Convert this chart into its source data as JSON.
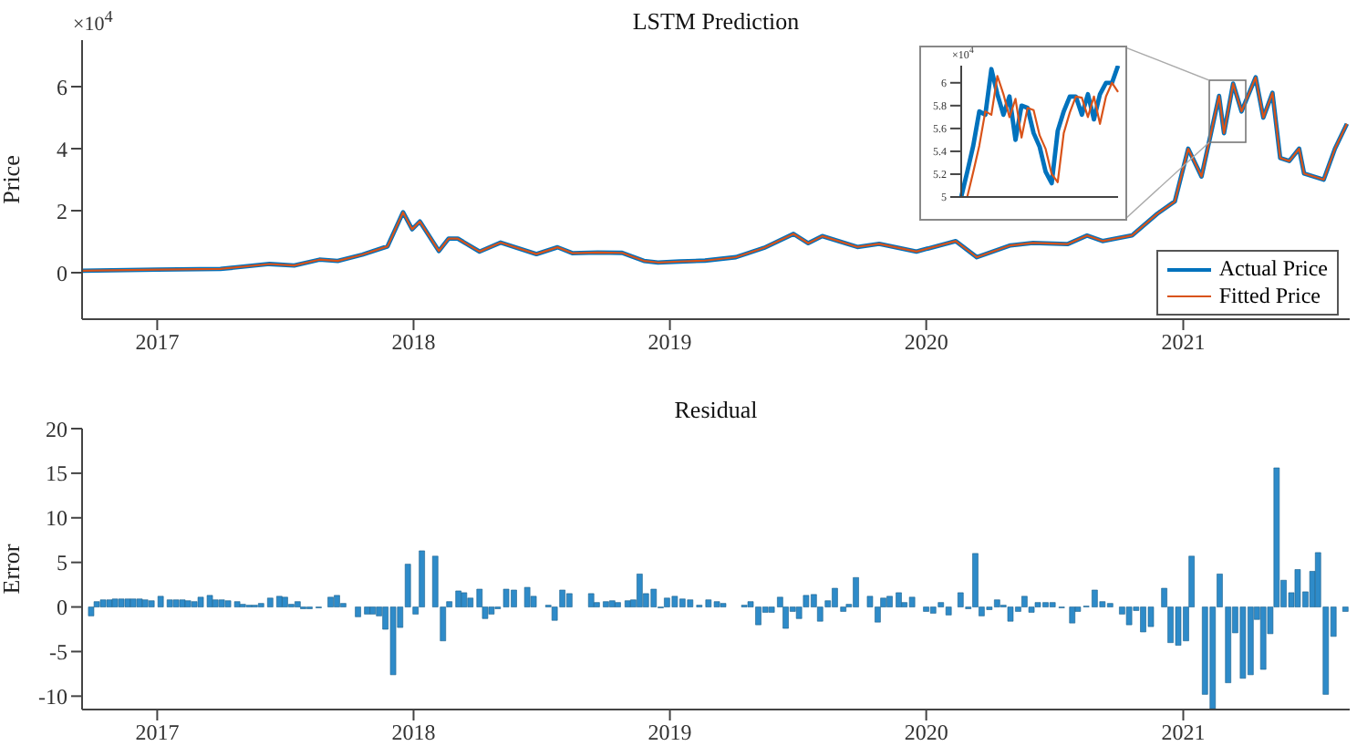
{
  "chart_data": [
    {
      "type": "line",
      "title": "LSTM Prediction",
      "ylabel": "Price",
      "annotations": [
        "×10$^{4}$"
      ],
      "xlim": [
        "2016-09-16",
        "2021-08-26"
      ],
      "xticks": [
        "2017",
        "2018",
        "2019",
        "2020",
        "2021"
      ],
      "ylim": [
        -1.5,
        7.5
      ],
      "yticks": [
        0,
        2,
        4,
        6
      ],
      "legend": "bottom right",
      "x": [
        "2016-09-16",
        "2017-01-01",
        "2017-04-01",
        "2017-06-10",
        "2017-07-15",
        "2017-08-20",
        "2017-09-15",
        "2017-10-20",
        "2017-11-25",
        "2017-12-17",
        "2017-12-30",
        "2018-01-10",
        "2018-02-06",
        "2018-02-20",
        "2018-03-05",
        "2018-04-05",
        "2018-05-05",
        "2018-06-25",
        "2018-07-25",
        "2018-08-15",
        "2018-09-20",
        "2018-10-25",
        "2018-11-25",
        "2018-12-15",
        "2019-01-15",
        "2019-02-20",
        "2019-04-05",
        "2019-05-15",
        "2019-06-26",
        "2019-07-17",
        "2019-08-06",
        "2019-09-25",
        "2019-10-26",
        "2019-12-18",
        "2020-02-12",
        "2020-03-13",
        "2020-04-30",
        "2020-06-01",
        "2020-07-20",
        "2020-08-17",
        "2020-09-08",
        "2020-10-20",
        "2020-11-25",
        "2020-12-20",
        "2021-01-08",
        "2021-01-27",
        "2021-02-21",
        "2021-02-28",
        "2021-03-13",
        "2021-03-25",
        "2021-04-14",
        "2021-04-25",
        "2021-05-08",
        "2021-05-19",
        "2021-06-01",
        "2021-06-15",
        "2021-06-22",
        "2021-07-20",
        "2021-08-05",
        "2021-08-22"
      ],
      "series": [
        {
          "name": "Actual Price",
          "color": "#0072bd",
          "values": [
            0.06,
            0.1,
            0.12,
            0.28,
            0.23,
            0.42,
            0.38,
            0.58,
            0.85,
            1.95,
            1.4,
            1.65,
            0.7,
            1.1,
            1.1,
            0.68,
            0.97,
            0.6,
            0.82,
            0.63,
            0.65,
            0.64,
            0.38,
            0.33,
            0.36,
            0.39,
            0.5,
            0.8,
            1.25,
            0.95,
            1.18,
            0.83,
            0.93,
            0.68,
            1.02,
            0.5,
            0.88,
            0.96,
            0.92,
            1.2,
            1.02,
            1.2,
            1.9,
            2.3,
            4,
            3.1,
            5.7,
            4.5,
            6.1,
            5.2,
            6.3,
            5,
            5.8,
            3.7,
            3.6,
            4,
            3.2,
            3,
            4,
            4.8
          ]
        },
        {
          "name": "Fitted Price",
          "color": "#d95319",
          "values": [
            0.06,
            0.1,
            0.12,
            0.28,
            0.23,
            0.42,
            0.38,
            0.58,
            0.85,
            1.95,
            1.4,
            1.65,
            0.7,
            1.1,
            1.1,
            0.68,
            0.97,
            0.6,
            0.82,
            0.63,
            0.65,
            0.64,
            0.38,
            0.33,
            0.36,
            0.39,
            0.5,
            0.8,
            1.25,
            0.95,
            1.18,
            0.83,
            0.93,
            0.68,
            1.02,
            0.5,
            0.88,
            0.96,
            0.92,
            1.2,
            1.02,
            1.2,
            1.9,
            2.3,
            4,
            3.1,
            5.7,
            4.5,
            6.1,
            5.2,
            6.3,
            5,
            5.8,
            3.7,
            3.6,
            4,
            3.2,
            3,
            4,
            4.8
          ]
        }
      ]
    },
    {
      "type": "line",
      "annotations": [
        "×10$^{4}$"
      ],
      "categories": [
        null,
        null,
        null,
        null,
        null,
        null,
        null,
        null,
        null,
        null,
        null,
        null,
        null,
        null,
        null,
        null,
        null,
        null,
        null,
        null,
        null,
        null,
        null,
        null,
        null,
        null,
        null
      ],
      "ylim": [
        5,
        6.15
      ],
      "yticks": [
        5,
        5.2,
        5.4,
        5.6,
        5.8,
        6
      ],
      "series": [
        {
          "color": "#0072bd",
          "values": [
            5.0,
            5.22,
            5.45,
            5.75,
            5.72,
            6.12,
            5.9,
            5.72,
            5.88,
            5.5,
            5.8,
            5.78,
            5.56,
            5.44,
            5.22,
            5.12,
            5.58,
            5.75,
            5.88,
            5.88,
            5.72,
            5.9,
            5.68,
            5.9,
            6.0,
            6.0,
            6.15
          ]
        },
        {
          "color": "#d95319",
          "values": [
            5.0,
            5.0,
            5.22,
            5.45,
            5.75,
            5.72,
            6.06,
            5.9,
            5.7,
            5.86,
            5.52,
            5.78,
            5.76,
            5.54,
            5.42,
            5.2,
            5.13,
            5.56,
            5.74,
            5.88,
            5.87,
            5.7,
            5.88,
            5.64,
            5.88,
            6.0,
            5.92
          ]
        }
      ]
    },
    {
      "type": "bar",
      "title": "Residual",
      "ylabel": "Error",
      "xlim": [
        "2016-09-16",
        "2021-08-26"
      ],
      "xticks": [
        "2017",
        "2018",
        "2019",
        "2020",
        "2021"
      ],
      "ylim": [
        -11.5,
        20
      ],
      "yticks": [
        -10,
        -5,
        0,
        5,
        10,
        15,
        20
      ],
      "color": "#2e8bc9",
      "x": [
        "2016-09-29",
        "2016-10-07",
        "2016-10-16",
        "2016-10-25",
        "2016-11-02",
        "2016-11-11",
        "2016-11-20",
        "2016-11-28",
        "2016-12-07",
        "2016-12-15",
        "2016-12-24",
        "2017-01-06",
        "2017-01-19",
        "2017-01-28",
        "2017-02-06",
        "2017-02-14",
        "2017-02-23",
        "2017-03-04",
        "2017-03-17",
        "2017-03-25",
        "2017-04-03",
        "2017-04-12",
        "2017-04-25",
        "2017-05-03",
        "2017-05-12",
        "2017-05-20",
        "2017-05-29",
        "2017-06-11",
        "2017-06-24",
        "2017-07-02",
        "2017-07-11",
        "2017-07-20",
        "2017-07-28",
        "2017-08-06",
        "2017-08-19",
        "2017-09-05",
        "2017-09-14",
        "2017-09-23",
        "2017-10-14",
        "2017-10-27",
        "2017-11-04",
        "2017-11-13",
        "2017-11-22",
        "2017-12-03",
        "2017-12-13",
        "2017-12-24",
        "2018-01-04",
        "2018-01-13",
        "2018-02-01",
        "2018-02-12",
        "2018-02-21",
        "2018-03-06",
        "2018-03-14",
        "2018-03-23",
        "2018-04-05",
        "2018-04-13",
        "2018-04-22",
        "2018-05-01",
        "2018-05-13",
        "2018-05-24",
        "2018-06-12",
        "2018-06-21",
        "2018-07-12",
        "2018-07-21",
        "2018-08-01",
        "2018-08-11",
        "2018-09-11",
        "2018-09-19",
        "2018-10-02",
        "2018-10-11",
        "2018-10-19",
        "2018-11-02",
        "2018-11-10",
        "2018-11-19",
        "2018-11-28",
        "2018-12-09",
        "2018-12-19",
        "2018-12-28",
        "2019-01-08",
        "2019-01-19",
        "2019-01-30",
        "2019-02-12",
        "2019-02-25",
        "2019-03-09",
        "2019-03-18",
        "2019-04-17",
        "2019-04-26",
        "2019-05-07",
        "2019-05-17",
        "2019-05-26",
        "2019-06-07",
        "2019-06-15",
        "2019-06-25",
        "2019-07-04",
        "2019-07-14",
        "2019-07-25",
        "2019-08-03",
        "2019-08-14",
        "2019-08-24",
        "2019-09-05",
        "2019-09-13",
        "2019-09-23",
        "2019-10-13",
        "2019-10-24",
        "2019-11-01",
        "2019-11-10",
        "2019-11-23",
        "2019-12-01",
        "2019-12-12",
        "2020-01-01",
        "2020-01-11",
        "2020-01-22",
        "2020-02-02",
        "2020-02-19",
        "2020-03-01",
        "2020-03-11",
        "2020-03-20",
        "2020-03-31",
        "2020-04-11",
        "2020-04-20",
        "2020-04-30",
        "2020-05-11",
        "2020-05-20",
        "2020-05-30",
        "2020-06-08",
        "2020-06-19",
        "2020-06-29",
        "2020-07-12",
        "2020-07-27",
        "2020-08-04",
        "2020-08-16",
        "2020-08-28",
        "2020-09-08",
        "2020-09-19",
        "2020-10-06",
        "2020-10-16",
        "2020-10-26",
        "2020-11-05",
        "2020-11-16",
        "2020-12-05",
        "2020-12-14",
        "2020-12-25",
        "2021-01-05",
        "2021-01-13",
        "2021-02-01",
        "2021-02-12",
        "2021-02-22",
        "2021-03-06",
        "2021-03-16",
        "2021-03-27",
        "2021-04-07",
        "2021-04-16",
        "2021-04-25",
        "2021-05-05",
        "2021-05-14",
        "2021-05-24",
        "2021-06-04",
        "2021-06-13",
        "2021-06-24",
        "2021-07-04",
        "2021-07-12",
        "2021-07-23",
        "2021-08-03",
        "2021-08-20"
      ],
      "values": [
        -1,
        0.6,
        0.8,
        0.8,
        0.9,
        0.9,
        0.9,
        0.9,
        0.9,
        0.8,
        0.7,
        1.2,
        0.8,
        0.8,
        0.8,
        0.7,
        0.6,
        1.1,
        1.3,
        0.8,
        0.8,
        0.7,
        0.6,
        0.3,
        0.2,
        0.2,
        0.4,
        1,
        1.2,
        1.1,
        0.3,
        0.6,
        -0.2,
        -0.2,
        -0.1,
        1.1,
        1.3,
        0.4,
        -1.1,
        -0.8,
        -0.8,
        -1,
        -2.5,
        -7.6,
        -2.3,
        4.8,
        -0.8,
        6.3,
        5.7,
        -3.8,
        0.6,
        1.8,
        1.6,
        1,
        2,
        -1.3,
        -0.8,
        -0.2,
        2,
        1.9,
        2.2,
        1.2,
        0.2,
        -1.5,
        1.9,
        1.5,
        1.5,
        0.5,
        0.6,
        0.7,
        0.5,
        0.7,
        0.8,
        3.7,
        1.5,
        2,
        -0.1,
        1,
        1.2,
        0.9,
        0.8,
        0.2,
        0.8,
        0.6,
        0.4,
        0.2,
        0.6,
        -2,
        -0.6,
        -0.6,
        1.1,
        -2.4,
        -0.5,
        -1.3,
        1.3,
        1.4,
        -1.6,
        0.7,
        2.1,
        -0.5,
        0.3,
        3.3,
        1.2,
        -1.7,
        1,
        1.2,
        1.6,
        0.5,
        1.1,
        -0.5,
        -0.7,
        0.5,
        -0.9,
        1.6,
        -0.2,
        6,
        -1,
        -0.3,
        0.8,
        0.2,
        -1.6,
        -0.5,
        1.2,
        -0.6,
        0.5,
        0.5,
        0.5,
        -0.1,
        -1.8,
        -0.5,
        0.1,
        1.9,
        0.6,
        0.4,
        -0.8,
        -2,
        -0.4,
        -2.8,
        -2.2,
        2.1,
        -4,
        -4.3,
        -3.8,
        5.7,
        -9.8,
        -11.4,
        3.7,
        -8.5,
        -2.9,
        -8,
        -7.6,
        -1.4,
        -7,
        -3,
        15.6,
        3,
        1.6,
        4.2,
        1.7,
        4,
        6.1,
        -9.8,
        -3.3,
        -0.5
      ]
    }
  ]
}
